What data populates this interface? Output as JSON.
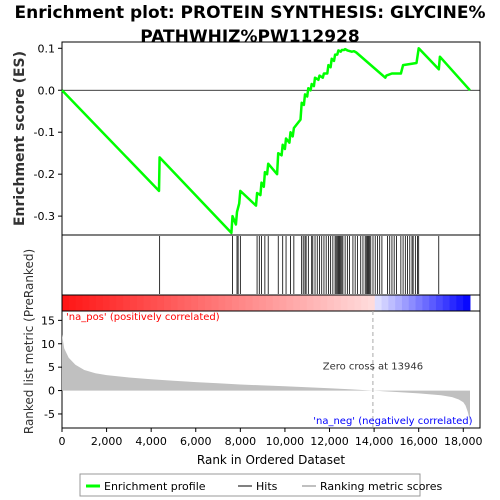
{
  "chart_data": {
    "type": "line",
    "title_lines": [
      "Enrichment plot: PROTEIN SYNTHESIS: GLYCINE%",
      "PATHWHIZ%PW112928"
    ],
    "top_panel": {
      "ylabel": "Enrichment score (ES)",
      "ylim": [
        -0.345,
        0.115
      ],
      "yticks": [
        0.1,
        0.0,
        -0.1,
        -0.2,
        -0.3
      ],
      "ytick_labels": [
        "0.1",
        "0.0",
        "-0.1",
        "-0.2",
        "-0.3"
      ],
      "series": [
        {
          "name": "Enrichment profile",
          "color": "#00ff00",
          "x": [
            0,
            4350,
            4380,
            7600,
            7650,
            7800,
            7850,
            7950,
            8000,
            8700,
            8750,
            8900,
            8950,
            9050,
            9100,
            9200,
            9250,
            9650,
            9700,
            9850,
            9900,
            10000,
            10050,
            10200,
            10250,
            10350,
            10400,
            10700,
            10750,
            10850,
            10900,
            11000,
            11050,
            11150,
            11200,
            11300,
            11350,
            11500,
            11550,
            11700,
            11750,
            11900,
            11950,
            12050,
            12100,
            12200,
            12250,
            12350,
            12400,
            12500,
            12550,
            12650,
            12700,
            12800,
            13000,
            13100,
            13200,
            14500,
            14550,
            14800,
            15200,
            15300,
            15900,
            16000,
            16900,
            16950,
            18300
          ],
          "y": [
            0.0,
            -0.24,
            -0.16,
            -0.34,
            -0.3,
            -0.32,
            -0.29,
            -0.27,
            -0.24,
            -0.275,
            -0.245,
            -0.25,
            -0.22,
            -0.23,
            -0.195,
            -0.2,
            -0.175,
            -0.2,
            -0.15,
            -0.155,
            -0.13,
            -0.14,
            -0.115,
            -0.125,
            -0.1,
            -0.11,
            -0.09,
            -0.07,
            -0.03,
            -0.035,
            -0.01,
            -0.015,
            0.005,
            0.0,
            0.015,
            0.01,
            0.03,
            0.025,
            0.035,
            0.03,
            0.04,
            0.04,
            0.06,
            0.055,
            0.075,
            0.07,
            0.085,
            0.085,
            0.095,
            0.092,
            0.096,
            0.096,
            0.098,
            0.095,
            0.092,
            0.093,
            0.09,
            0.03,
            0.035,
            0.04,
            0.04,
            0.06,
            0.065,
            0.1,
            0.05,
            0.08,
            0.0
          ]
        }
      ]
    },
    "hits_panel": {
      "name": "Hits",
      "hit_positions": [
        4380,
        7650,
        7850,
        7900,
        8000,
        8750,
        8850,
        8950,
        9100,
        9250,
        9700,
        9900,
        10050,
        10250,
        10400,
        10750,
        10820,
        10900,
        10950,
        11050,
        11200,
        11250,
        11350,
        11450,
        11550,
        11650,
        11750,
        11850,
        11950,
        12050,
        12150,
        12250,
        12300,
        12350,
        12400,
        12450,
        12500,
        12550,
        12600,
        12700,
        12800,
        12900,
        13050,
        13150,
        13250,
        13400,
        13500,
        13600,
        13650,
        13700,
        13750,
        13800,
        13850,
        13950,
        14050,
        14150,
        14250,
        14350,
        14600,
        14700,
        14800,
        14900,
        15000,
        15200,
        15300,
        15400,
        15500,
        15600,
        15700,
        15750,
        15850,
        15950,
        16000,
        16900
      ]
    },
    "bottom_panel": {
      "ylabel": "Ranked list metric (PreRanked)",
      "xlabel": "Rank in Ordered Dataset",
      "ylim": [
        -8,
        17
      ],
      "yticks": [
        15,
        10,
        5,
        0,
        -5
      ],
      "ytick_labels": [
        "15",
        "10",
        "5",
        "0",
        "-5"
      ],
      "xlim": [
        0,
        18750
      ],
      "xticks": [
        0,
        2000,
        4000,
        6000,
        8000,
        10000,
        12000,
        14000,
        16000,
        18000
      ],
      "xtick_labels": [
        "0",
        "2,000",
        "4,000",
        "6,000",
        "8,000",
        "10,000",
        "12,000",
        "14,000",
        "16,000",
        "18,000"
      ],
      "metric_curve": {
        "x": [
          0,
          100,
          300,
          600,
          1000,
          1500,
          2000,
          3000,
          4000,
          5000,
          6000,
          7000,
          8000,
          9000,
          10000,
          11000,
          12000,
          13000,
          13946,
          15000,
          16000,
          17000,
          17500,
          17800,
          18000,
          18100,
          18200,
          18300
        ],
        "y": [
          12,
          9,
          7,
          5.5,
          4.4,
          3.7,
          3.3,
          2.8,
          2.4,
          2.1,
          1.8,
          1.55,
          1.3,
          1.1,
          0.9,
          0.7,
          0.5,
          0.25,
          0,
          -0.3,
          -0.6,
          -1.0,
          -1.4,
          -1.9,
          -2.5,
          -3.2,
          -4.5,
          -6.5
        ]
      },
      "pos_label": "'na_pos' (positively correlated)",
      "neg_label": "'na_neg' (negatively correlated)",
      "zero_cross_label": "Zero cross at 13946",
      "zero_cross": 13946
    },
    "legend": [
      {
        "label": "Enrichment profile",
        "color": "#00ff00"
      },
      {
        "label": "Hits",
        "color": "#808080"
      },
      {
        "label": "Ranking metric scores",
        "color": "#c0c0c0"
      }
    ],
    "colors": {
      "profile": "#00ff00",
      "metric_fill": "#c0c0c0",
      "pos_text": "#ff0000",
      "neg_text": "#0000ff"
    }
  }
}
